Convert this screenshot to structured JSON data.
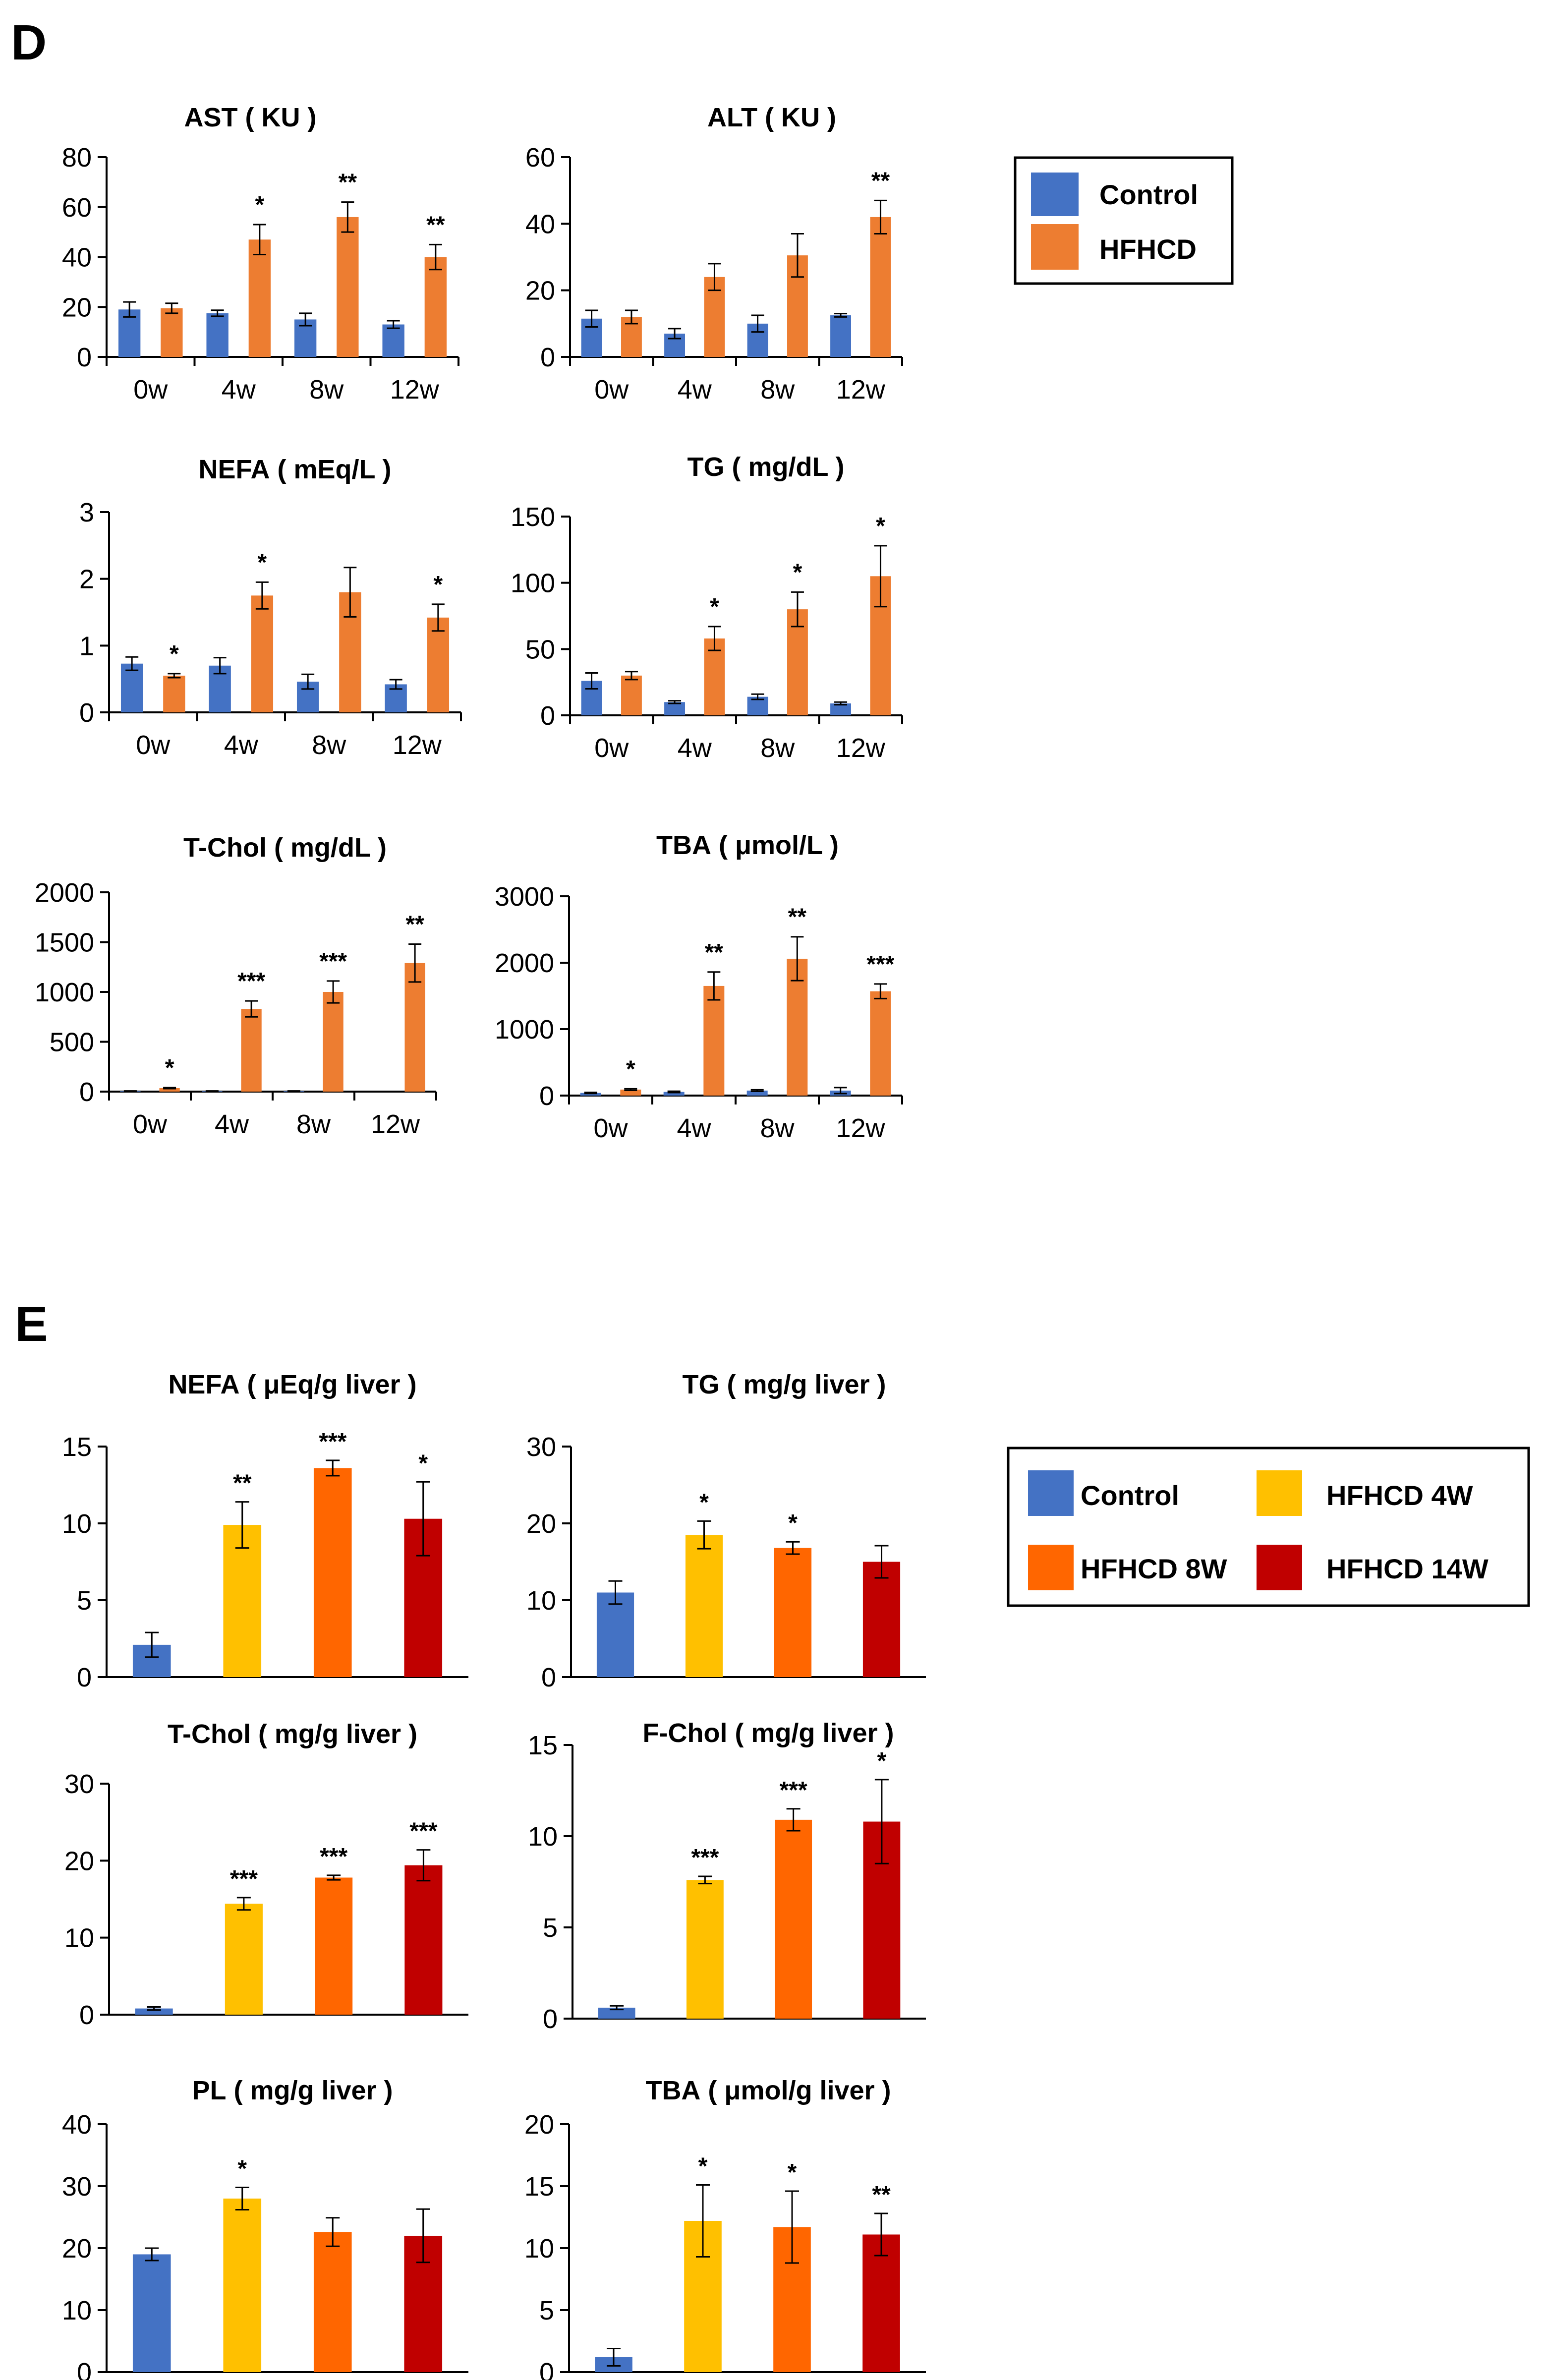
{
  "panels": [
    {
      "letter": "D"
    },
    {
      "letter": "E"
    }
  ],
  "legends": [
    {
      "entries": [
        {
          "label": "Control",
          "color": "#4472C4"
        },
        {
          "label": "HFHCD",
          "color": "#ED7D31"
        }
      ]
    },
    {
      "entries": [
        {
          "label": "Control",
          "color": "#4472C4"
        },
        {
          "label": "HFHCD 4W",
          "color": "#FFC000"
        },
        {
          "label": "HFHCD 8W",
          "color": "#FF6600"
        },
        {
          "label": "HFHCD 14W",
          "color": "#C00000"
        }
      ]
    }
  ],
  "chart_data": [
    {
      "type": "bar",
      "title": "AST ( KU )",
      "categories": [
        "0w",
        "4w",
        "8w",
        "12w"
      ],
      "ylim": [
        0,
        80
      ],
      "yticks": [
        "0",
        "20",
        "40",
        "60",
        "80"
      ],
      "series": [
        {
          "name": "Control",
          "color": "#4472C4",
          "values": [
            19,
            17.5,
            15,
            13
          ],
          "errors": [
            3,
            1.2,
            2.5,
            1.5
          ],
          "significance": [
            "",
            "",
            "",
            ""
          ]
        },
        {
          "name": "HFHCD",
          "color": "#ED7D31",
          "values": [
            19.5,
            47,
            56,
            40
          ],
          "errors": [
            2,
            6,
            6,
            5
          ],
          "significance": [
            "",
            "*",
            "**",
            "**"
          ]
        }
      ]
    },
    {
      "type": "bar",
      "title": "ALT ( KU )",
      "categories": [
        "0w",
        "4w",
        "8w",
        "12w"
      ],
      "ylim": [
        0,
        60
      ],
      "yticks": [
        "0",
        "20",
        "40",
        "60"
      ],
      "series": [
        {
          "name": "Control",
          "color": "#4472C4",
          "values": [
            11.5,
            7,
            10,
            12.5
          ],
          "errors": [
            2.5,
            1.5,
            2.5,
            0.5
          ],
          "significance": [
            "",
            "",
            "",
            ""
          ]
        },
        {
          "name": "HFHCD",
          "color": "#ED7D31",
          "values": [
            12,
            24,
            30.5,
            42
          ],
          "errors": [
            2,
            4,
            6.5,
            5
          ],
          "significance": [
            "",
            "",
            "",
            "**"
          ]
        }
      ]
    },
    {
      "type": "bar",
      "title": "NEFA ( mEq/L )",
      "categories": [
        "0w",
        "4w",
        "8w",
        "12w"
      ],
      "ylim": [
        0,
        3
      ],
      "yticks": [
        "0",
        "1",
        "2",
        "3"
      ],
      "series": [
        {
          "name": "Control",
          "color": "#4472C4",
          "values": [
            0.73,
            0.7,
            0.46,
            0.42
          ],
          "errors": [
            0.1,
            0.12,
            0.11,
            0.07
          ],
          "significance": [
            "",
            "",
            "",
            ""
          ]
        },
        {
          "name": "HFHCD",
          "color": "#ED7D31",
          "values": [
            0.55,
            1.75,
            1.8,
            1.42
          ],
          "errors": [
            0.03,
            0.2,
            0.37,
            0.2
          ],
          "significance": [
            "*",
            "*",
            "",
            "*"
          ]
        }
      ]
    },
    {
      "type": "bar",
      "title": "TG ( mg/dL )",
      "categories": [
        "0w",
        "4w",
        "8w",
        "12w"
      ],
      "ylim": [
        0,
        150
      ],
      "yticks": [
        "0",
        "50",
        "100",
        "150"
      ],
      "series": [
        {
          "name": "Control",
          "color": "#4472C4",
          "values": [
            26,
            10,
            14,
            9
          ],
          "errors": [
            6,
            1,
            2,
            1
          ],
          "significance": [
            "",
            "",
            "",
            ""
          ]
        },
        {
          "name": "HFHCD",
          "color": "#ED7D31",
          "values": [
            30,
            58,
            80,
            105
          ],
          "errors": [
            3,
            9,
            13,
            23
          ],
          "significance": [
            "",
            "*",
            "*",
            "*"
          ]
        }
      ]
    },
    {
      "type": "bar",
      "title": "T-Chol ( mg/dL )",
      "categories": [
        "0w",
        "4w",
        "8w",
        "12w"
      ],
      "ylim": [
        0,
        2000
      ],
      "yticks": [
        "0",
        "500",
        "1000",
        "1500",
        "2000"
      ],
      "series": [
        {
          "name": "Control",
          "color": "#4472C4",
          "values": [
            5,
            5,
            5,
            0
          ],
          "errors": [
            2,
            2,
            2,
            0
          ],
          "significance": [
            "",
            "",
            "",
            ""
          ]
        },
        {
          "name": "HFHCD",
          "color": "#ED7D31",
          "values": [
            35,
            830,
            1000,
            1290
          ],
          "errors": [
            5,
            80,
            110,
            190
          ],
          "significance": [
            "*",
            "***",
            "***",
            "**"
          ]
        }
      ]
    },
    {
      "type": "bar",
      "title": "TBA ( μmol/L )",
      "categories": [
        "0w",
        "4w",
        "8w",
        "12w"
      ],
      "ylim": [
        0,
        3000
      ],
      "yticks": [
        "0",
        "1000",
        "2000",
        "3000"
      ],
      "series": [
        {
          "name": "Control",
          "color": "#4472C4",
          "values": [
            40,
            55,
            75,
            75
          ],
          "errors": [
            8,
            10,
            12,
            45
          ],
          "significance": [
            "",
            "",
            "",
            ""
          ]
        },
        {
          "name": "HFHCD",
          "color": "#ED7D31",
          "values": [
            90,
            1650,
            2060,
            1570
          ],
          "errors": [
            12,
            210,
            330,
            110
          ],
          "significance": [
            "*",
            "**",
            "**",
            "***"
          ]
        }
      ]
    },
    {
      "type": "bar",
      "title": "NEFA ( μEq/g liver )",
      "categories": [
        "Control",
        "HFHCD 4W",
        "HFHCD 8W",
        "HFHCD 14W"
      ],
      "colors": [
        "#4472C4",
        "#FFC000",
        "#FF6600",
        "#C00000"
      ],
      "ylim": [
        0,
        15
      ],
      "yticks": [
        "0",
        "5",
        "10",
        "15"
      ],
      "values": [
        2.1,
        9.9,
        13.6,
        10.3
      ],
      "errors": [
        0.8,
        1.5,
        0.5,
        2.4
      ],
      "significance": [
        "",
        "**",
        "***",
        "*"
      ]
    },
    {
      "type": "bar",
      "title": "TG ( mg/g liver )",
      "categories": [
        "Control",
        "HFHCD 4W",
        "HFHCD 8W",
        "HFHCD 14W"
      ],
      "colors": [
        "#4472C4",
        "#FFC000",
        "#FF6600",
        "#C00000"
      ],
      "ylim": [
        0,
        30
      ],
      "yticks": [
        "0",
        "10",
        "20",
        "30"
      ],
      "values": [
        11,
        18.5,
        16.8,
        15
      ],
      "errors": [
        1.5,
        1.8,
        0.8,
        2.1
      ],
      "significance": [
        "",
        "*",
        "*",
        ""
      ]
    },
    {
      "type": "bar",
      "title": "T-Chol ( mg/g liver )",
      "categories": [
        "Control",
        "HFHCD 4W",
        "HFHCD 8W",
        "HFHCD 14W"
      ],
      "colors": [
        "#4472C4",
        "#FFC000",
        "#FF6600",
        "#C00000"
      ],
      "ylim": [
        0,
        30
      ],
      "yticks": [
        "0",
        "10",
        "20",
        "30"
      ],
      "values": [
        0.8,
        14.4,
        17.8,
        19.4
      ],
      "errors": [
        0.2,
        0.8,
        0.3,
        2
      ],
      "significance": [
        "",
        "***",
        "***",
        "***"
      ]
    },
    {
      "type": "bar",
      "title": "F-Chol ( mg/g liver )",
      "categories": [
        "Control",
        "HFHCD 4W",
        "HFHCD 8W",
        "HFHCD 14W"
      ],
      "colors": [
        "#4472C4",
        "#FFC000",
        "#FF6600",
        "#C00000"
      ],
      "ylim": [
        0,
        15
      ],
      "yticks": [
        "0",
        "5",
        "10",
        "15"
      ],
      "values": [
        0.6,
        7.6,
        10.9,
        10.8
      ],
      "errors": [
        0.1,
        0.2,
        0.6,
        2.3
      ],
      "significance": [
        "",
        "***",
        "***",
        "*"
      ]
    },
    {
      "type": "bar",
      "title": "PL ( mg/g liver )",
      "categories": [
        "Control",
        "HFHCD 4W",
        "HFHCD 8W",
        "HFHCD 14W"
      ],
      "colors": [
        "#4472C4",
        "#FFC000",
        "#FF6600",
        "#C00000"
      ],
      "ylim": [
        0,
        40
      ],
      "yticks": [
        "0",
        "10",
        "20",
        "30",
        "40"
      ],
      "values": [
        19,
        28,
        22.6,
        22
      ],
      "errors": [
        1,
        1.8,
        2.3,
        4.3
      ],
      "significance": [
        "",
        "*",
        "",
        ""
      ]
    },
    {
      "type": "bar",
      "title": "TBA ( μmol/g liver )",
      "categories": [
        "Control",
        "HFHCD 4W",
        "HFHCD 8W",
        "HFHCD 14W"
      ],
      "colors": [
        "#4472C4",
        "#FFC000",
        "#FF6600",
        "#C00000"
      ],
      "ylim": [
        0,
        20
      ],
      "yticks": [
        "0",
        "5",
        "10",
        "15",
        "20"
      ],
      "values": [
        1.2,
        12.2,
        11.7,
        11.1
      ],
      "errors": [
        0.7,
        2.9,
        2.9,
        1.7
      ],
      "significance": [
        "",
        "*",
        "*",
        "**"
      ]
    }
  ]
}
